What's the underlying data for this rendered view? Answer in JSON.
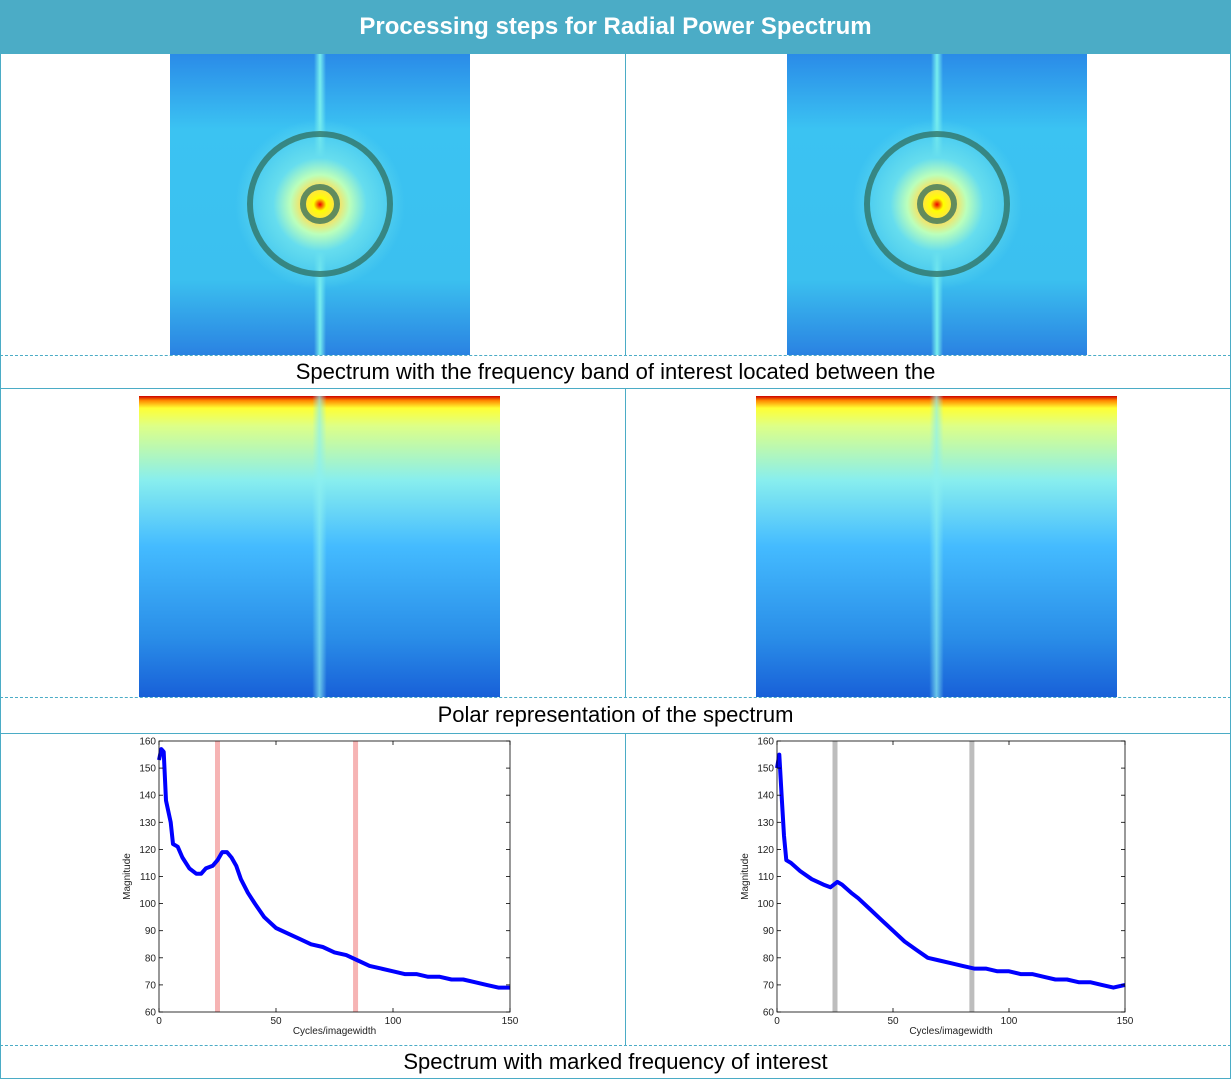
{
  "table": {
    "title": "Processing steps for Radial Power Spectrum",
    "captions": [
      "Spectrum with the frequency band of interest located between the",
      "Polar representation of the spectrum",
      "Spectrum with marked frequency of interest"
    ]
  },
  "chart_data": [
    {
      "type": "line",
      "xlabel": "Cycles/imagewidth",
      "ylabel": "Magnitude",
      "x": [
        0,
        1,
        2,
        3,
        5,
        6,
        8,
        10,
        13,
        16,
        18,
        20,
        23,
        25,
        27,
        29,
        31,
        33,
        35,
        38,
        41,
        45,
        50,
        55,
        60,
        65,
        70,
        75,
        80,
        85,
        90,
        95,
        100,
        105,
        110,
        115,
        120,
        125,
        130,
        135,
        140,
        145,
        150
      ],
      "series": [
        {
          "color": "#0000ff",
          "values": [
            153,
            157,
            156,
            138,
            130,
            122,
            121,
            117,
            113,
            111,
            111,
            113,
            114,
            116,
            119,
            119,
            117,
            114,
            109,
            104,
            100,
            95,
            91,
            89,
            87,
            85,
            84,
            82,
            81,
            79,
            77,
            76,
            75,
            74,
            74,
            73,
            73,
            72,
            72,
            71,
            70,
            69,
            69
          ]
        }
      ],
      "markers": {
        "x": [
          25,
          84
        ],
        "color": "#f6b4b4"
      },
      "xlim": [
        0,
        150
      ],
      "ylim": [
        60,
        160
      ],
      "xticks": [
        0,
        50,
        100,
        150
      ],
      "yticks": [
        60,
        70,
        80,
        90,
        100,
        110,
        120,
        130,
        140,
        150,
        160
      ]
    },
    {
      "type": "line",
      "xlabel": "Cycles/imagewidth",
      "ylabel": "Magnitude",
      "x": [
        0,
        1,
        2,
        3,
        4,
        6,
        10,
        15,
        20,
        23,
        26,
        28,
        32,
        35,
        40,
        45,
        50,
        55,
        60,
        65,
        70,
        75,
        80,
        85,
        90,
        95,
        100,
        105,
        110,
        115,
        120,
        125,
        130,
        135,
        140,
        145,
        150
      ],
      "series": [
        {
          "color": "#0000ff",
          "values": [
            150,
            155,
            140,
            125,
            116,
            115,
            112,
            109,
            107,
            106,
            108,
            107,
            104,
            102,
            98,
            94,
            90,
            86,
            83,
            80,
            79,
            78,
            77,
            76,
            76,
            75,
            75,
            74,
            74,
            73,
            72,
            72,
            71,
            71,
            70,
            69,
            70
          ]
        }
      ],
      "markers": {
        "x": [
          25,
          84
        ],
        "color": "#bdbdbd"
      },
      "xlim": [
        0,
        150
      ],
      "ylim": [
        60,
        160
      ],
      "xticks": [
        0,
        50,
        100,
        150
      ],
      "yticks": [
        60,
        70,
        80,
        90,
        100,
        110,
        120,
        130,
        140,
        150,
        160
      ]
    }
  ]
}
